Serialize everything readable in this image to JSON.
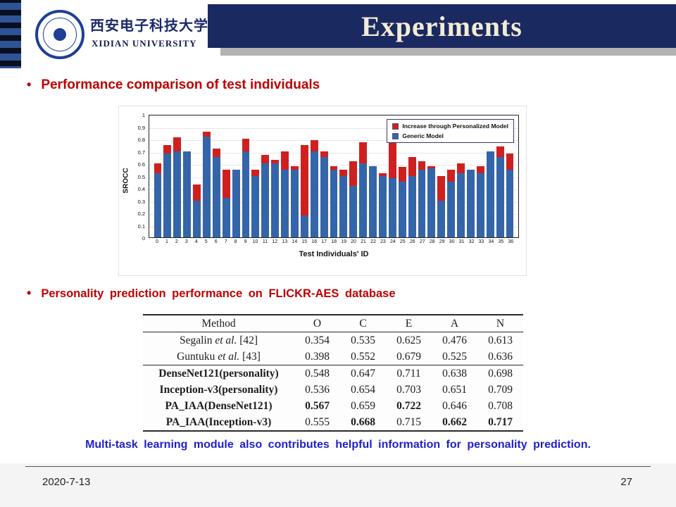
{
  "slide": {
    "title": "Experiments",
    "date": "2020-7-13",
    "page_number": "27"
  },
  "logo": {
    "chinese_name": "西安电子科技大学",
    "english_name": "XIDIAN UNIVERSITY"
  },
  "bullets": {
    "first": "Performance comparison of test individuals",
    "second": "Personality prediction performance on FLICKR-AES database"
  },
  "note": "Multi-task learning module also contributes helpful information for personality prediction.",
  "chart_data": {
    "type": "bar",
    "stacked": true,
    "title": "",
    "xlabel": "Test Individuals' ID",
    "ylabel": "SROCC",
    "ylim": [
      0,
      1
    ],
    "grid": true,
    "legend_position": "top-right",
    "y_ticks": [
      "1",
      "0.9",
      "0.8",
      "0.7",
      "0.6",
      "0.5",
      "0.4",
      "0.3",
      "0.2",
      "0.1",
      "0"
    ],
    "categories": [
      "0",
      "1",
      "2",
      "3",
      "4",
      "5",
      "6",
      "7",
      "8",
      "9",
      "10",
      "11",
      "12",
      "13",
      "14",
      "15",
      "16",
      "17",
      "18",
      "19",
      "20",
      "21",
      "22",
      "23",
      "24",
      "25",
      "26",
      "27",
      "28",
      "29",
      "30",
      "31",
      "32",
      "33",
      "34",
      "35",
      "36"
    ],
    "series": [
      {
        "name": "Generic Model",
        "color": "#3465a8",
        "values": [
          0.52,
          0.68,
          0.7,
          0.7,
          0.3,
          0.82,
          0.65,
          0.32,
          0.55,
          0.7,
          0.5,
          0.6,
          0.6,
          0.55,
          0.55,
          0.18,
          0.7,
          0.65,
          0.55,
          0.5,
          0.42,
          0.6,
          0.58,
          0.5,
          0.48,
          0.45,
          0.5,
          0.55,
          0.56,
          0.3,
          0.45,
          0.52,
          0.55,
          0.52,
          0.7,
          0.65,
          0.55
        ]
      },
      {
        "name": "Increase through Personalized Model",
        "color": "#cf2020",
        "values": [
          0.08,
          0.07,
          0.11,
          0.0,
          0.13,
          0.04,
          0.07,
          0.23,
          0.0,
          0.1,
          0.05,
          0.07,
          0.03,
          0.15,
          0.03,
          0.57,
          0.09,
          0.05,
          0.03,
          0.05,
          0.2,
          0.17,
          0.0,
          0.02,
          0.35,
          0.12,
          0.15,
          0.07,
          0.02,
          0.2,
          0.1,
          0.08,
          0.0,
          0.06,
          0.0,
          0.09,
          0.13
        ]
      }
    ]
  },
  "table": {
    "headers": [
      "Method",
      "O",
      "C",
      "E",
      "A",
      "N"
    ],
    "rows": [
      {
        "method": "Segalin et al. [42]",
        "bold_method": false,
        "values": [
          "0.354",
          "0.535",
          "0.625",
          "0.476",
          "0.613"
        ],
        "bold": [
          false,
          false,
          false,
          false,
          false
        ]
      },
      {
        "method": "Guntuku et al. [43]",
        "bold_method": false,
        "values": [
          "0.398",
          "0.552",
          "0.679",
          "0.525",
          "0.636"
        ],
        "bold": [
          false,
          false,
          false,
          false,
          false
        ]
      },
      {
        "method": "DenseNet121(personality)",
        "bold_method": true,
        "values": [
          "0.548",
          "0.647",
          "0.711",
          "0.638",
          "0.698"
        ],
        "bold": [
          false,
          false,
          false,
          false,
          false
        ]
      },
      {
        "method": "Inception-v3(personality)",
        "bold_method": true,
        "values": [
          "0.536",
          "0.654",
          "0.703",
          "0.651",
          "0.709"
        ],
        "bold": [
          false,
          false,
          false,
          false,
          false
        ]
      },
      {
        "method": "PA_IAA(DenseNet121)",
        "bold_method": true,
        "values": [
          "0.567",
          "0.659",
          "0.722",
          "0.646",
          "0.708"
        ],
        "bold": [
          true,
          false,
          true,
          false,
          false
        ]
      },
      {
        "method": "PA_IAA(Inception-v3)",
        "bold_method": true,
        "values": [
          "0.555",
          "0.668",
          "0.715",
          "0.662",
          "0.717"
        ],
        "bold": [
          false,
          true,
          false,
          true,
          true
        ]
      }
    ]
  },
  "colors": {
    "banner": "#1b2961",
    "banner_text": "#f2ecd5",
    "heading_red": "#c00000",
    "note_blue": "#1f1fcc",
    "bar_blue": "#3465a8",
    "bar_red": "#cf2020"
  }
}
